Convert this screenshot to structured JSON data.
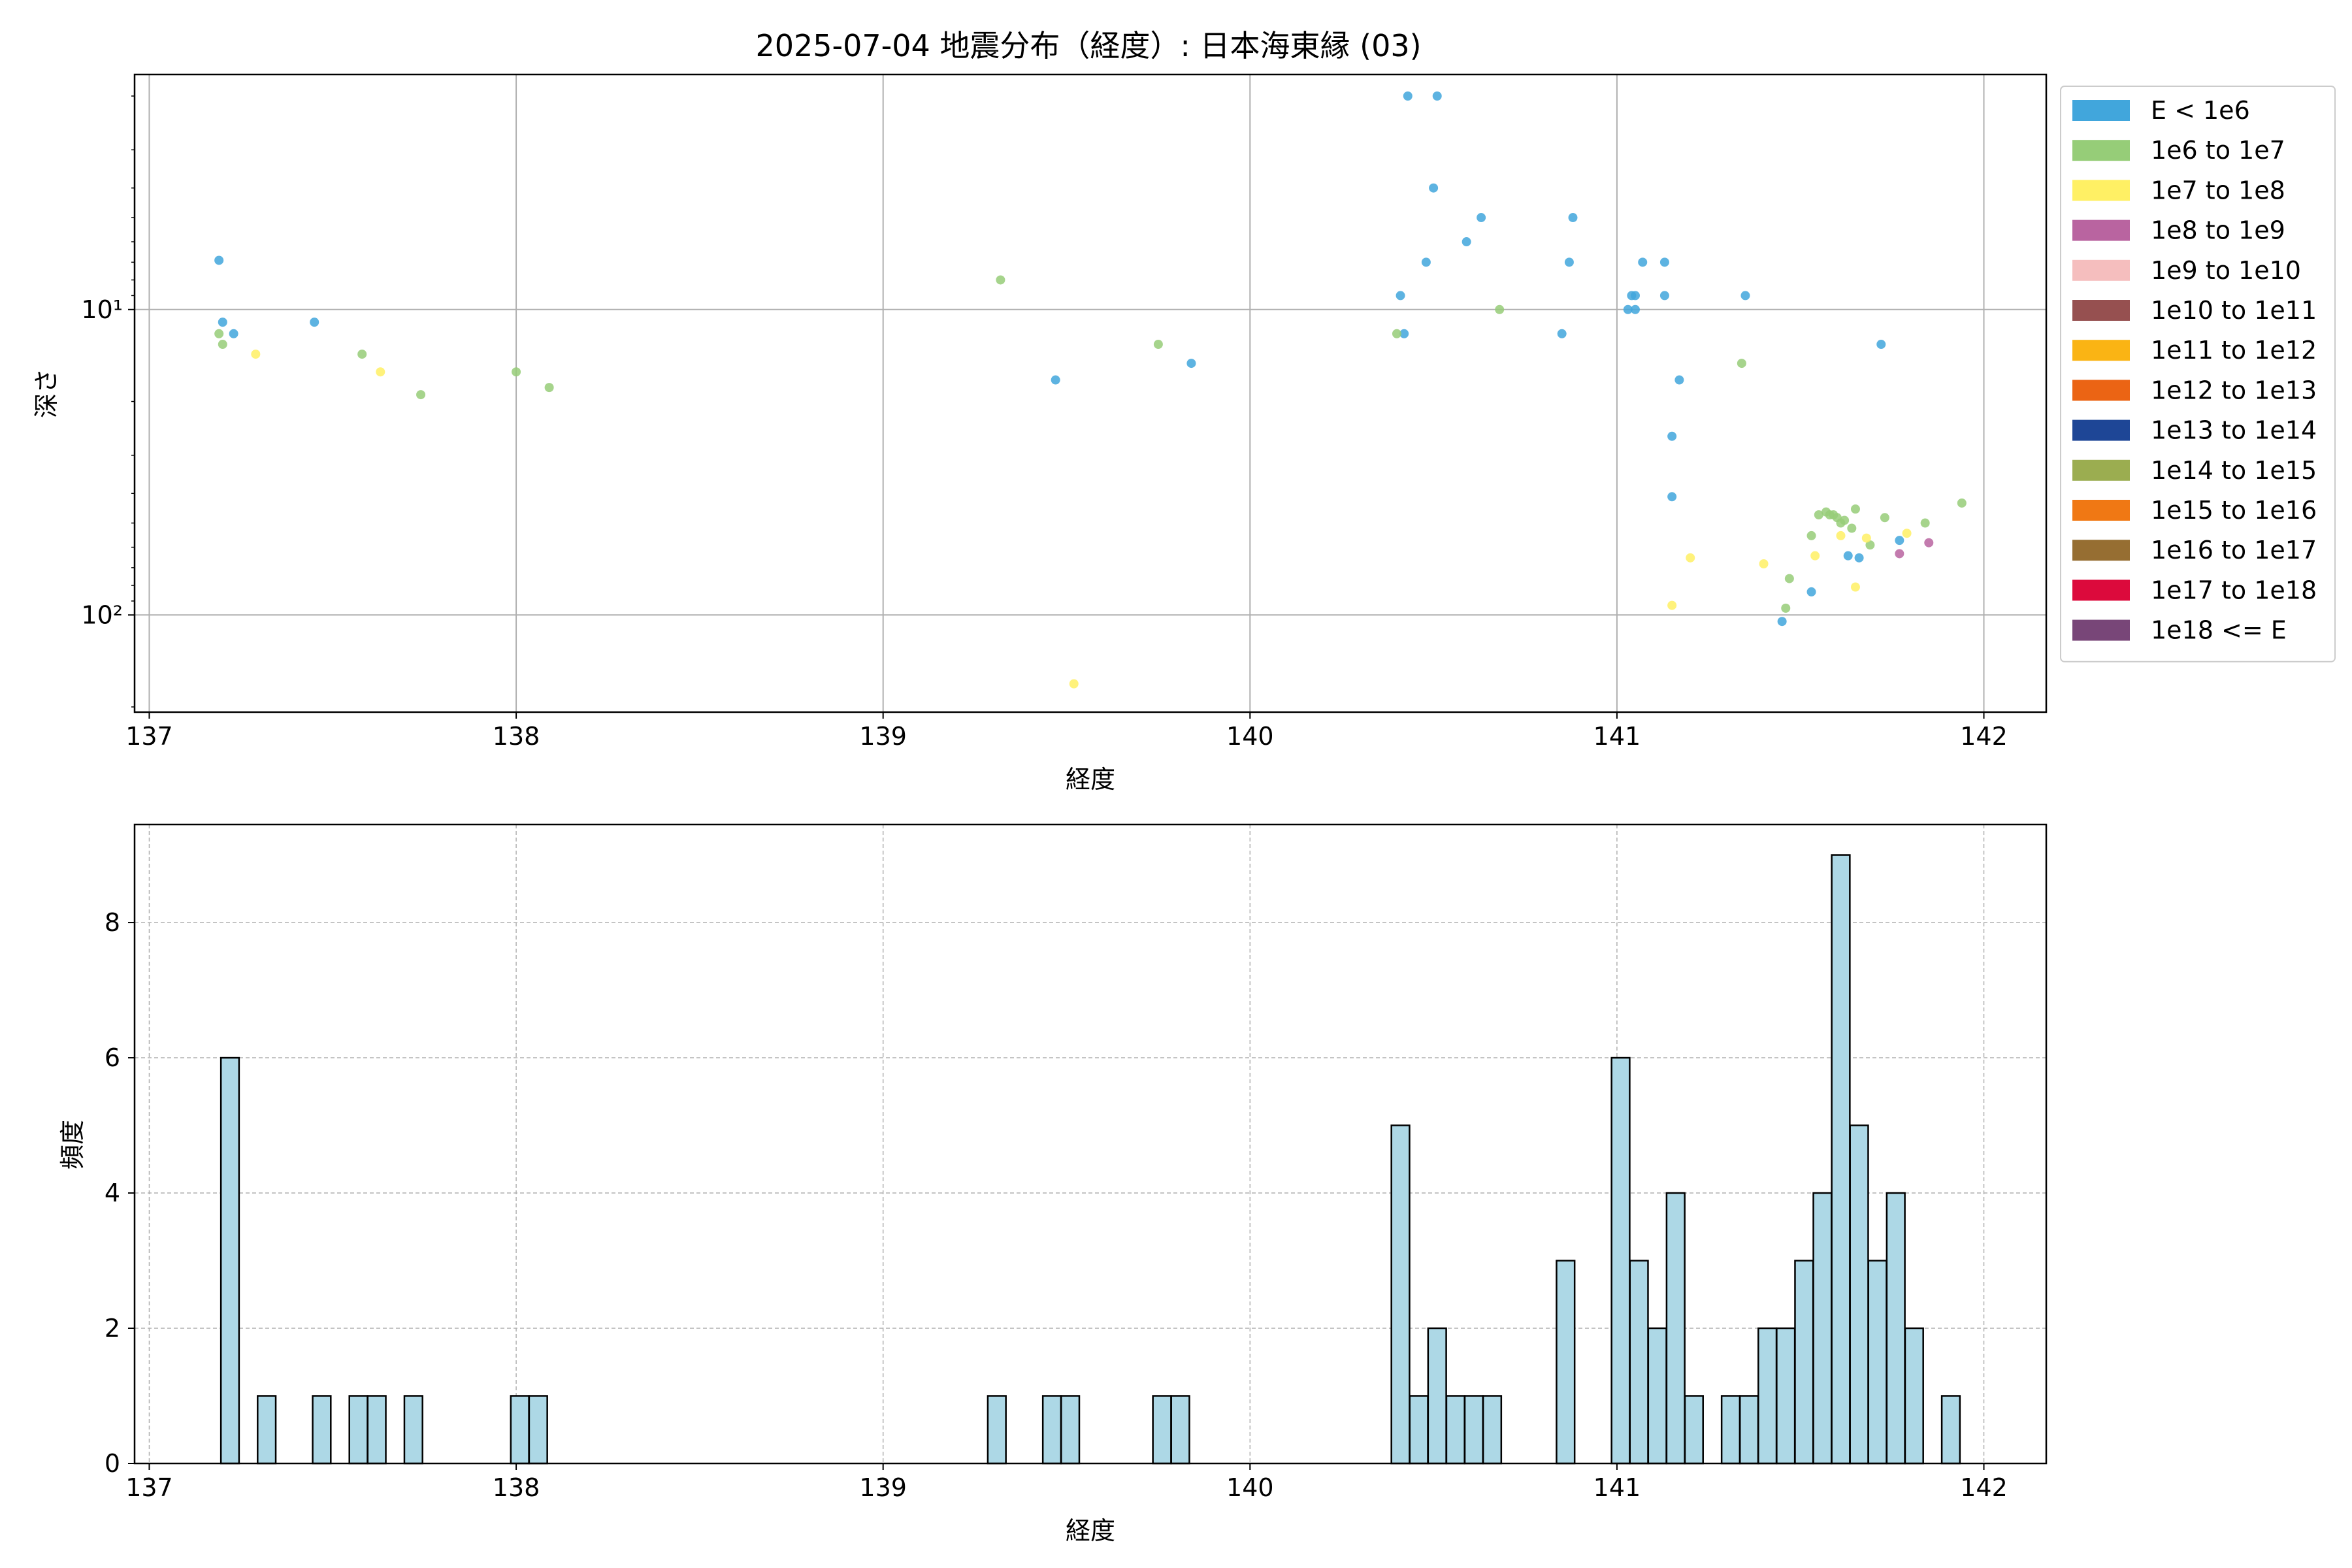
{
  "chart_data": [
    {
      "type": "scatter",
      "title": "2025-07-04 地震分布（経度）: 日本海東縁 (03)",
      "xlabel": "経度",
      "ylabel": "深さ",
      "xlim": [
        136.96,
        142.17
      ],
      "ylim": [
        208,
        1.7
      ],
      "yscale": "log",
      "y_inverted": true,
      "xticks": [
        137,
        138,
        139,
        140,
        141,
        142
      ],
      "yticks": [
        {
          "value": 10,
          "label": "10¹"
        },
        {
          "value": 100,
          "label": "10²"
        }
      ],
      "grid": true,
      "legend_position": "outside-right",
      "legend": [
        {
          "label": "E < 1e6",
          "color": "#41a6dc"
        },
        {
          "label": "1e6 to 1e7",
          "color": "#96cd78"
        },
        {
          "label": "1e7 to 1e8",
          "color": "#fff064"
        },
        {
          "label": "1e8 to 1e9",
          "color": "#b964a0"
        },
        {
          "label": "1e9 to 1e10",
          "color": "#f5bebe"
        },
        {
          "label": "1e10 to 1e11",
          "color": "#965050"
        },
        {
          "label": "1e11 to 1e12",
          "color": "#fab414"
        },
        {
          "label": "1e12 to 1e13",
          "color": "#eb6414"
        },
        {
          "label": "1e13 to 1e14",
          "color": "#1e4696"
        },
        {
          "label": "1e14 to 1e15",
          "color": "#9bad50"
        },
        {
          "label": "1e15 to 1e16",
          "color": "#f07814"
        },
        {
          "label": "1e16 to 1e17",
          "color": "#966e32"
        },
        {
          "label": "1e17 to 1e18",
          "color": "#dc0a3c"
        },
        {
          "label": "1e18 <= E",
          "color": "#784678"
        }
      ],
      "series": [
        {
          "color": "#41a6dc",
          "points": [
            [
              137.19,
              6.9
            ],
            [
              137.2,
              11
            ],
            [
              137.23,
              12
            ],
            [
              137.45,
              11
            ],
            [
              139.47,
              17
            ],
            [
              139.84,
              15
            ],
            [
              140.41,
              9
            ],
            [
              140.42,
              12
            ],
            [
              140.43,
              2
            ],
            [
              140.51,
              2
            ],
            [
              140.48,
              7
            ],
            [
              140.5,
              4
            ],
            [
              140.59,
              6
            ],
            [
              140.63,
              5
            ],
            [
              140.85,
              12
            ],
            [
              140.87,
              7
            ],
            [
              140.88,
              5
            ],
            [
              141.03,
              10
            ],
            [
              141.04,
              9
            ],
            [
              141.05,
              9
            ],
            [
              141.05,
              10
            ],
            [
              141.07,
              7
            ],
            [
              141.13,
              7
            ],
            [
              141.13,
              9
            ],
            [
              141.15,
              26
            ],
            [
              141.15,
              41
            ],
            [
              141.17,
              17
            ],
            [
              141.35,
              9
            ],
            [
              141.45,
              105
            ],
            [
              141.53,
              84
            ],
            [
              141.63,
              64
            ],
            [
              141.66,
              65
            ],
            [
              141.72,
              13
            ],
            [
              141.77,
              57
            ]
          ]
        },
        {
          "color": "#96cd78",
          "points": [
            [
              137.19,
              12
            ],
            [
              137.2,
              13
            ],
            [
              137.58,
              14
            ],
            [
              137.74,
              19
            ],
            [
              138.0,
              16
            ],
            [
              138.09,
              18
            ],
            [
              139.32,
              8
            ],
            [
              139.75,
              13
            ],
            [
              140.4,
              12
            ],
            [
              140.68,
              10
            ],
            [
              141.34,
              15
            ],
            [
              141.46,
              95
            ],
            [
              141.47,
              76
            ],
            [
              141.53,
              55
            ],
            [
              141.55,
              47
            ],
            [
              141.57,
              46
            ],
            [
              141.58,
              47
            ],
            [
              141.59,
              47
            ],
            [
              141.6,
              48
            ],
            [
              141.61,
              50
            ],
            [
              141.62,
              49
            ],
            [
              141.64,
              52
            ],
            [
              141.65,
              45
            ],
            [
              141.69,
              59
            ],
            [
              141.73,
              48
            ],
            [
              141.84,
              50
            ],
            [
              141.94,
              43
            ]
          ]
        },
        {
          "color": "#fff064",
          "points": [
            [
              137.29,
              14
            ],
            [
              137.63,
              16
            ],
            [
              139.52,
              168
            ],
            [
              141.15,
              93
            ],
            [
              141.2,
              65
            ],
            [
              141.4,
              68
            ],
            [
              141.54,
              64
            ],
            [
              141.61,
              55
            ],
            [
              141.65,
              81
            ],
            [
              141.68,
              56
            ],
            [
              141.79,
              54
            ]
          ]
        },
        {
          "color": "#b964a0",
          "points": [
            [
              141.77,
              63
            ],
            [
              141.85,
              58
            ]
          ]
        }
      ]
    },
    {
      "type": "bar",
      "title": "",
      "xlabel": "経度",
      "ylabel": "頻度",
      "xlim": [
        136.96,
        142.17
      ],
      "ylim": [
        0,
        9.45
      ],
      "xticks": [
        137,
        138,
        139,
        140,
        141,
        142
      ],
      "yticks": [
        0,
        2,
        4,
        6,
        8
      ],
      "grid": "dashed",
      "bar_color": "#add8e6",
      "bin_width": 0.0494,
      "bins": [
        {
          "x": 137.22,
          "count": 6
        },
        {
          "x": 137.32,
          "count": 1
        },
        {
          "x": 137.47,
          "count": 1
        },
        {
          "x": 137.57,
          "count": 1
        },
        {
          "x": 137.62,
          "count": 1
        },
        {
          "x": 137.72,
          "count": 1
        },
        {
          "x": 138.01,
          "count": 1
        },
        {
          "x": 138.06,
          "count": 1
        },
        {
          "x": 139.31,
          "count": 1
        },
        {
          "x": 139.46,
          "count": 1
        },
        {
          "x": 139.51,
          "count": 1
        },
        {
          "x": 139.76,
          "count": 1
        },
        {
          "x": 139.81,
          "count": 1
        },
        {
          "x": 140.41,
          "count": 5
        },
        {
          "x": 140.46,
          "count": 1
        },
        {
          "x": 140.51,
          "count": 2
        },
        {
          "x": 140.56,
          "count": 1
        },
        {
          "x": 140.61,
          "count": 1
        },
        {
          "x": 140.66,
          "count": 1
        },
        {
          "x": 140.86,
          "count": 3
        },
        {
          "x": 141.01,
          "count": 6
        },
        {
          "x": 141.06,
          "count": 3
        },
        {
          "x": 141.11,
          "count": 2
        },
        {
          "x": 141.16,
          "count": 4
        },
        {
          "x": 141.21,
          "count": 1
        },
        {
          "x": 141.31,
          "count": 1
        },
        {
          "x": 141.36,
          "count": 1
        },
        {
          "x": 141.41,
          "count": 2
        },
        {
          "x": 141.46,
          "count": 2
        },
        {
          "x": 141.51,
          "count": 3
        },
        {
          "x": 141.56,
          "count": 4
        },
        {
          "x": 141.61,
          "count": 9
        },
        {
          "x": 141.66,
          "count": 5
        },
        {
          "x": 141.71,
          "count": 3
        },
        {
          "x": 141.76,
          "count": 4
        },
        {
          "x": 141.81,
          "count": 2
        },
        {
          "x": 141.91,
          "count": 1
        }
      ]
    }
  ]
}
